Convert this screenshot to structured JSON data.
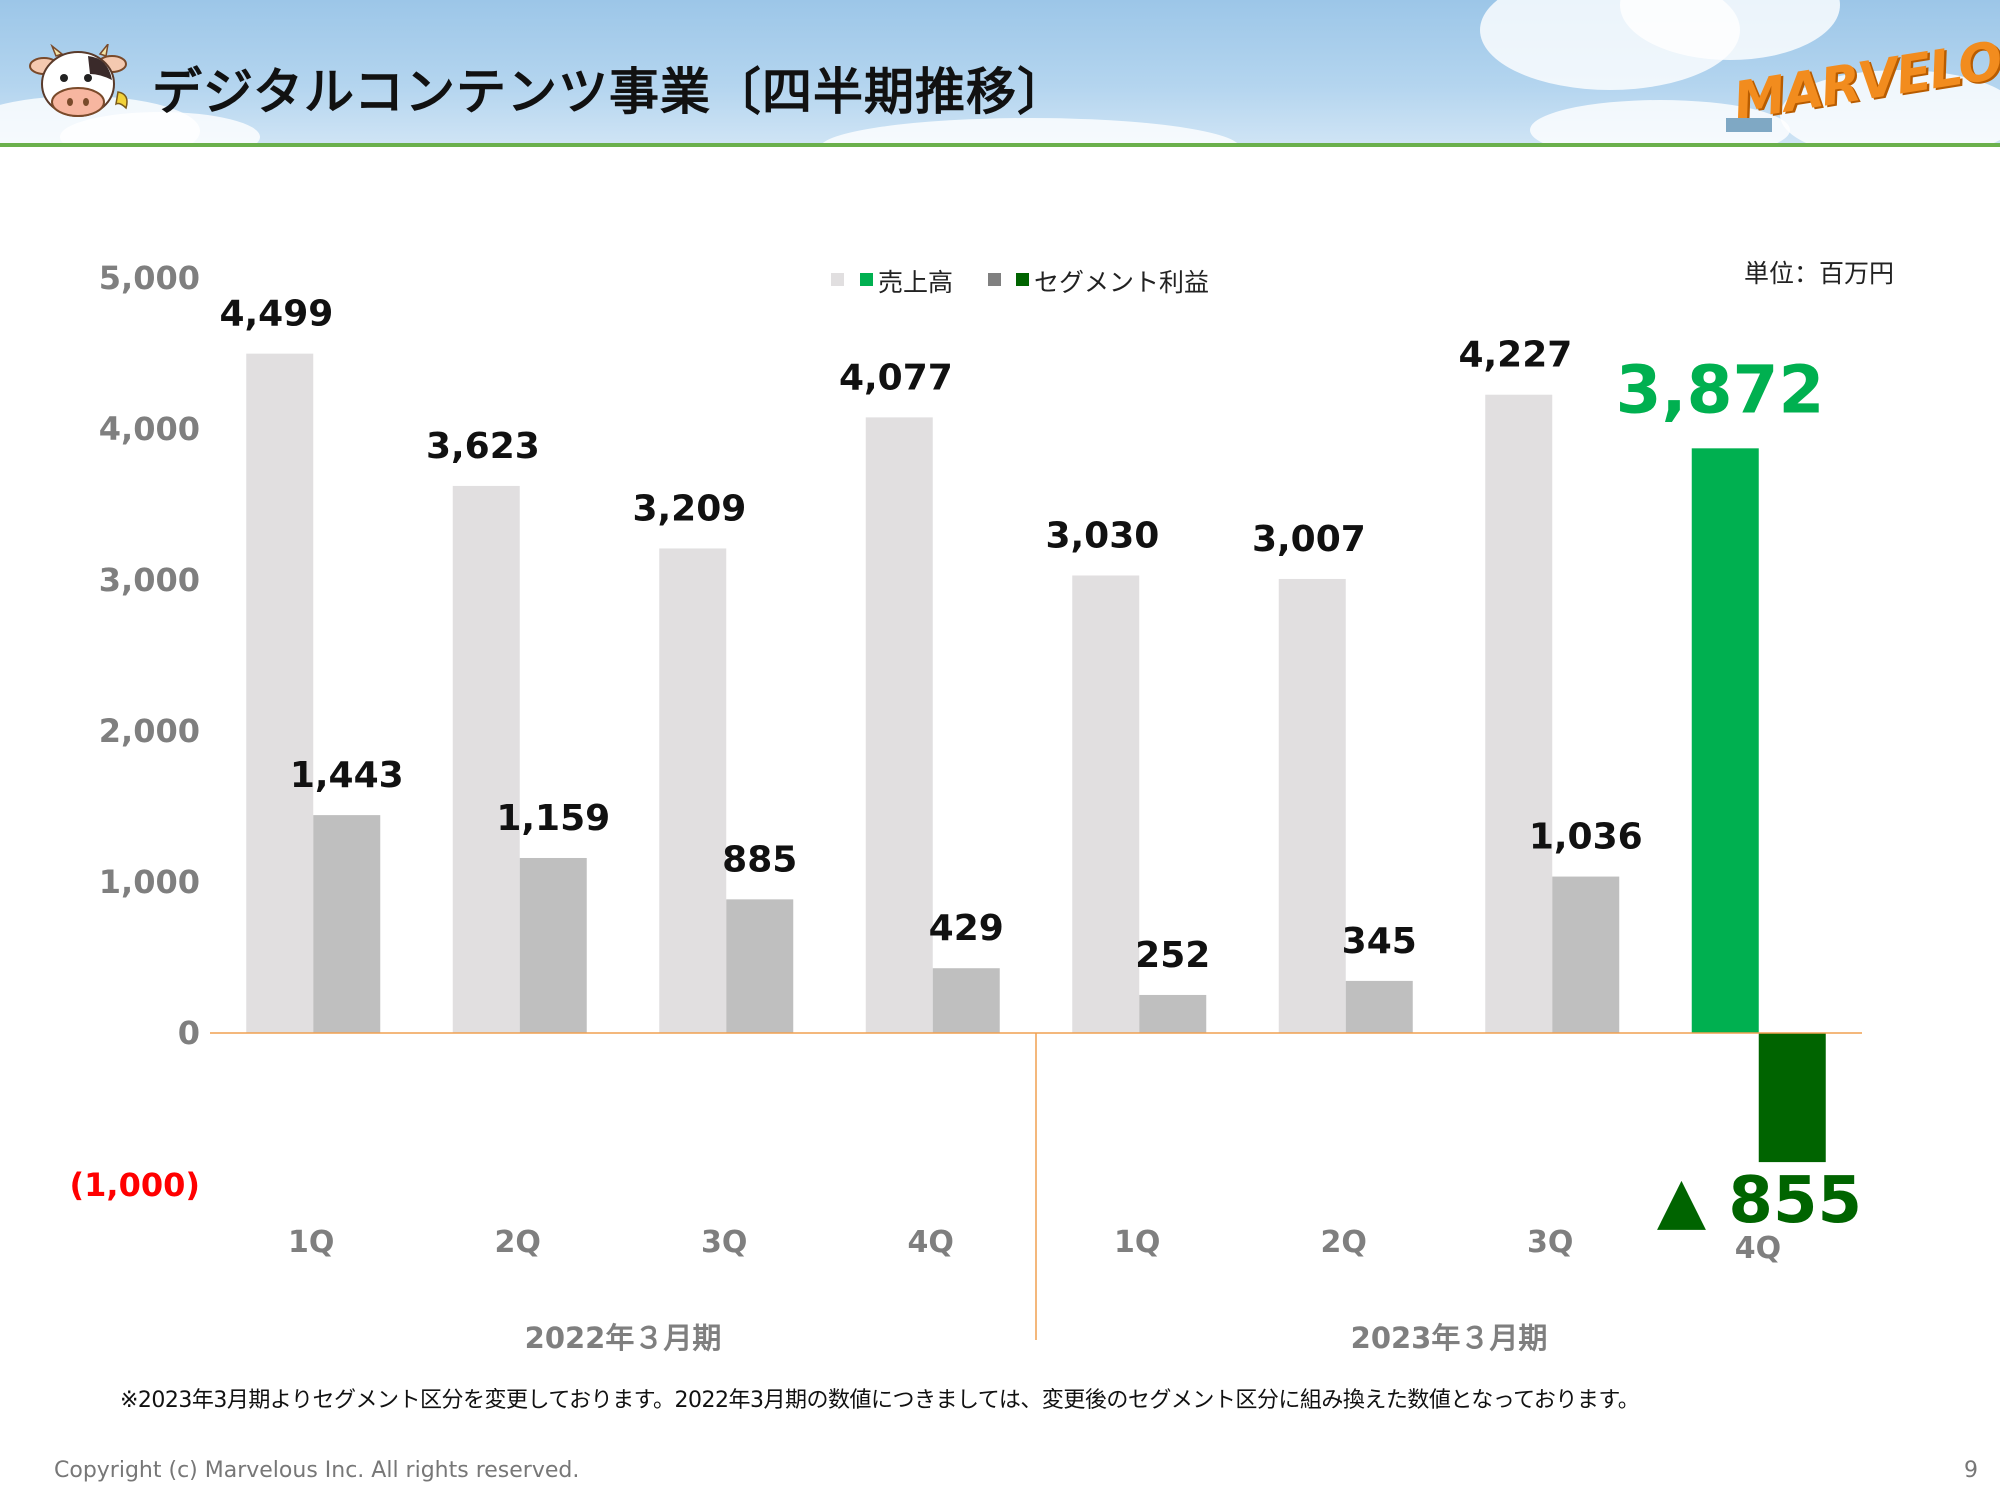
{
  "header": {
    "title": "デジタルコンテンツ事業〔四半期推移〕",
    "logo_text": "MARVELOUS!"
  },
  "unit_label": "単位：百万円",
  "legend": {
    "sales_label": "売上高",
    "profit_label": "セグメント利益"
  },
  "colors": {
    "sales_bar": "#e1dfe0",
    "profit_bar": "#bfbfbf",
    "sales_highlight": "#00b050",
    "profit_highlight": "#006400",
    "baseline": "#f0a050",
    "axis_text": "#7f7f7f",
    "negative_tick": "#ff0000",
    "label_text": "#111111"
  },
  "chart_data": {
    "type": "bar",
    "categories": [
      "1Q",
      "2Q",
      "3Q",
      "4Q",
      "1Q",
      "2Q",
      "3Q",
      "4Q"
    ],
    "groups": [
      {
        "label": "2022年３月期",
        "from": 0,
        "to": 3
      },
      {
        "label": "2023年３月期",
        "from": 4,
        "to": 7
      }
    ],
    "series": [
      {
        "name": "売上高",
        "values": [
          4499,
          3623,
          3209,
          4077,
          3030,
          3007,
          4227,
          3872
        ]
      },
      {
        "name": "セグメント利益",
        "values": [
          1443,
          1159,
          885,
          429,
          252,
          345,
          1036,
          -855
        ]
      }
    ],
    "data_labels": {
      "sales": [
        "4,499",
        "3,623",
        "3,209",
        "4,077",
        "3,030",
        "3,007",
        "4,227",
        "3,872"
      ],
      "profit": [
        "1,443",
        "1,159",
        "885",
        "429",
        "252",
        "345",
        "1,036",
        "▲ 855"
      ]
    },
    "y_ticks": [
      {
        "value": 5000,
        "label": "5,000"
      },
      {
        "value": 4000,
        "label": "4,000"
      },
      {
        "value": 3000,
        "label": "3,000"
      },
      {
        "value": 2000,
        "label": "2,000"
      },
      {
        "value": 1000,
        "label": "1,000"
      },
      {
        "value": 0,
        "label": "0"
      },
      {
        "value": -1000,
        "label": "(1,000)"
      }
    ],
    "ylim": [
      -1000,
      5000
    ],
    "highlight_index": 7,
    "legend_position": "top-center",
    "grid": false
  },
  "footnote": "※2023年3月期よりセグメント区分を変更しております。2022年3月期の数値につきましては、変更後のセグメント区分に組み換えた数値となっております。",
  "copyright": "Copyright (c) Marvelous Inc. All rights reserved.",
  "page_number": "9"
}
